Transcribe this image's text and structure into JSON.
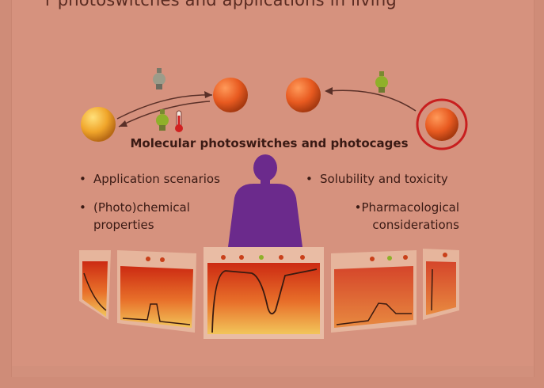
{
  "header": {
    "partial_text": "r photoswitches and applications in living"
  },
  "diagram": {
    "title": "Molecular photoswitches and photocages",
    "left_points": [
      "Application scenarios",
      "(Photo)chemical",
      "properties"
    ],
    "right_points": [
      "Solubility and toxicity",
      "Pharmacological",
      "considerations"
    ],
    "colors": {
      "background": "#d6927e",
      "switch_orange": "#e85a20",
      "ring_red": "#c81f1f",
      "person_purple": "#6b2a8c",
      "panel_top": "#cc2a12",
      "panel_bottom": "#f0c040",
      "bulb_green": "#8fb02a"
    },
    "icons": [
      "lightbulb-icon",
      "thermometer-icon",
      "human-silhouette-icon"
    ]
  }
}
